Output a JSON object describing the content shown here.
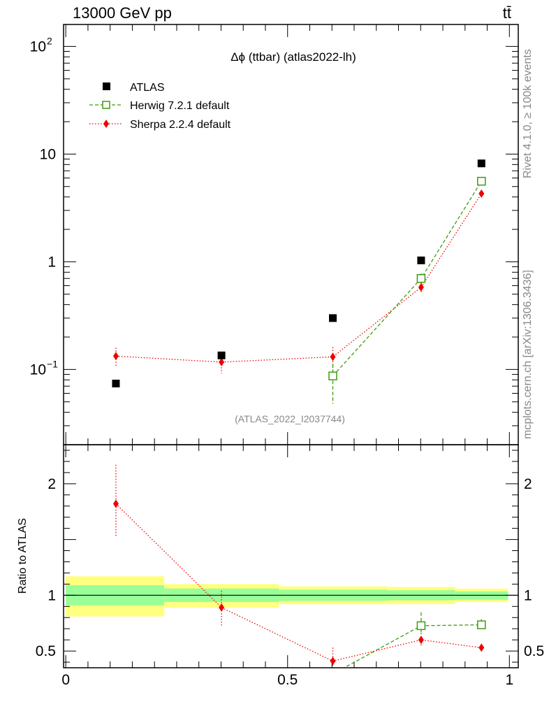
{
  "header": {
    "left": "13000 GeV pp",
    "right": "tt̄"
  },
  "side_labels": {
    "rivet": "Rivet 4.1.0, ≥ 100k events",
    "mcplots": "mcplots.cern.ch [arXiv:1306.3436]"
  },
  "chart_data": [
    {
      "type": "scatter",
      "title": "Δϕ (ttbar) (atlas2022-lh)",
      "watermark": "(ATLAS_2022_I2037744)",
      "xlabel": "",
      "ylabel": "",
      "yscale": "log",
      "xlim": [
        -0.005,
        1.02
      ],
      "ylim": [
        0.02,
        160
      ],
      "yticks": [
        {
          "value": 0.1,
          "label": "10",
          "exp": "−1"
        },
        {
          "value": 1,
          "label": "1",
          "exp": ""
        },
        {
          "value": 10,
          "label": "10",
          "exp": ""
        },
        {
          "value": 100,
          "label": "10",
          "exp": "2"
        }
      ],
      "legend_position": "top-left",
      "series": [
        {
          "name": "ATLAS",
          "color": "#000000",
          "marker": "square",
          "x": [
            0.113,
            0.351,
            0.602,
            0.801,
            0.937
          ],
          "values": [
            0.074,
            0.135,
            0.3,
            1.03,
            8.2
          ]
        },
        {
          "name": "Herwig 7.2.1 default",
          "color": "#3d9c0e",
          "marker": "open-square",
          "line": "dashed",
          "x": [
            0.602,
            0.801,
            0.937
          ],
          "values": [
            0.087,
            0.7,
            5.6
          ],
          "err_low": [
            0.039,
            0.06,
            0.3
          ],
          "err_high": [
            0.026,
            0.08,
            0.4
          ]
        },
        {
          "name": "Sherpa 2.2.4 default",
          "color": "#ee0000",
          "marker": "diamond",
          "line": "dotted",
          "x": [
            0.113,
            0.351,
            0.602,
            0.801,
            0.937
          ],
          "values": [
            0.133,
            0.117,
            0.131,
            0.58,
            4.3
          ],
          "err_low": [
            0.026,
            0.025,
            0.03,
            0.06,
            0.3
          ],
          "err_high": [
            0.026,
            0.016,
            0.03,
            0.06,
            0.3
          ]
        }
      ]
    },
    {
      "type": "scatter",
      "title": "",
      "xlabel": "",
      "ylabel": "Ratio to ATLAS",
      "xlim": [
        -0.005,
        1.02
      ],
      "ylim": [
        0.35,
        2.35
      ],
      "xticks": [
        {
          "value": 0,
          "label": "0"
        },
        {
          "value": 0.5,
          "label": "0.5"
        },
        {
          "value": 1,
          "label": "1"
        }
      ],
      "yticks": [
        {
          "value": 0.5,
          "label": "0.5"
        },
        {
          "value": 1,
          "label": "1"
        },
        {
          "value": 2,
          "label": "2"
        }
      ],
      "uncertainty_bands": [
        {
          "x0": 0.0,
          "x1": 0.222,
          "inner": [
            0.91,
            1.09
          ],
          "outer": [
            0.81,
            1.17
          ]
        },
        {
          "x0": 0.222,
          "x1": 0.48,
          "inner": [
            0.94,
            1.06
          ],
          "outer": [
            0.89,
            1.1
          ]
        },
        {
          "x0": 0.48,
          "x1": 0.725,
          "inner": [
            0.95,
            1.05
          ],
          "outer": [
            0.92,
            1.08
          ]
        },
        {
          "x0": 0.725,
          "x1": 0.878,
          "inner": [
            0.955,
            1.045
          ],
          "outer": [
            0.92,
            1.075
          ]
        },
        {
          "x0": 0.878,
          "x1": 0.997,
          "inner": [
            0.96,
            1.035
          ],
          "outer": [
            0.94,
            1.06
          ]
        }
      ],
      "series": [
        {
          "name": "Herwig 7.2.1 default",
          "color": "#3d9c0e",
          "marker": "open-square",
          "line": "dashed",
          "x": [
            0.801,
            0.937
          ],
          "values": [
            0.727,
            0.735
          ],
          "err_low": [
            0.06,
            0.04
          ],
          "err_high": [
            0.12,
            0.05
          ],
          "line_from": {
            "x": 0.6,
            "value": 0.29
          }
        },
        {
          "name": "Sherpa 2.2.4 default",
          "color": "#ee0000",
          "marker": "diamond",
          "line": "dotted",
          "x": [
            0.113,
            0.351,
            0.602,
            0.801,
            0.937
          ],
          "values": [
            1.82,
            0.89,
            0.41,
            0.6,
            0.53
          ],
          "err_low": [
            0.3,
            0.16,
            0.1,
            0.06,
            0.03
          ],
          "err_high": [
            0.35,
            0.15,
            0.12,
            0.06,
            0.03
          ]
        }
      ]
    }
  ]
}
